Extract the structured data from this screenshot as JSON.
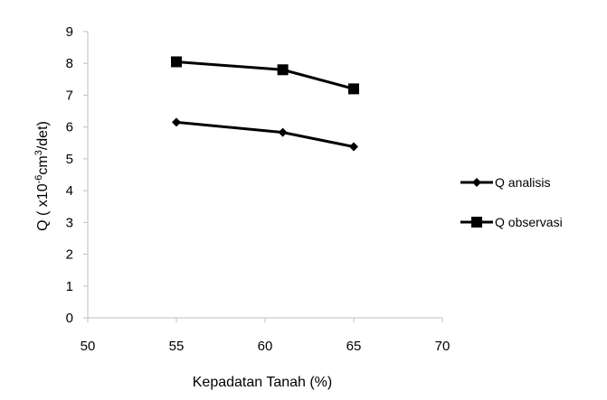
{
  "chart_data": {
    "type": "line",
    "xlabel": "Kepadatan Tanah (%)",
    "ylabel": {
      "prefix": "Q ( x10",
      "exp1": "-6",
      "mid": "cm",
      "exp2": "3",
      "suffix": "/det)"
    },
    "xlim": [
      50,
      70
    ],
    "ylim": [
      0,
      9
    ],
    "xticks": [
      "50",
      "55",
      "60",
      "65",
      "70"
    ],
    "yticks": [
      "0",
      "1",
      "2",
      "3",
      "4",
      "5",
      "6",
      "7",
      "8",
      "9"
    ],
    "grid": false,
    "legend_position": "right",
    "series": [
      {
        "name": "Q analisis",
        "marker": "diamond",
        "color": "#000000",
        "x": [
          55,
          61,
          65
        ],
        "y": [
          6.15,
          5.83,
          5.38
        ]
      },
      {
        "name": "Q observasi",
        "marker": "square",
        "color": "#000000",
        "x": [
          55,
          61,
          65
        ],
        "y": [
          8.05,
          7.8,
          7.2
        ]
      }
    ]
  }
}
